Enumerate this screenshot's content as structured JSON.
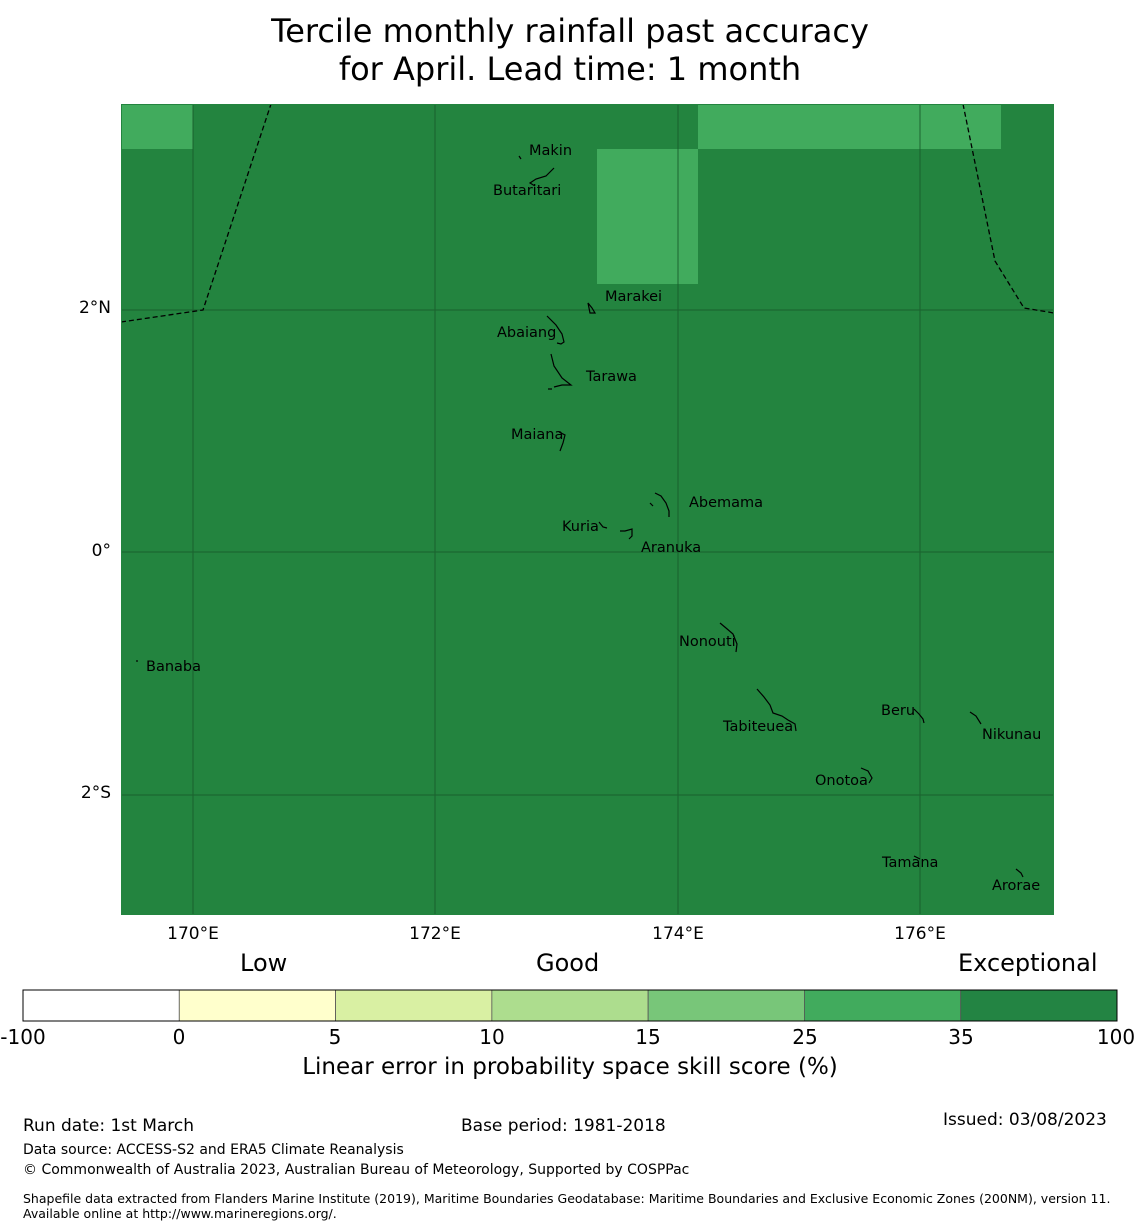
{
  "title": {
    "line1": "Tercile monthly rainfall past accuracy",
    "line2": "for April. Lead time: 1 month"
  },
  "map": {
    "background_color": "#23843f",
    "highlight_color": "#41ab5d",
    "latitude_labels": [
      "2°N",
      "0°",
      "2°S"
    ],
    "longitude_labels": [
      "170°E",
      "172°E",
      "174°E",
      "176°E"
    ],
    "islands": [
      "Makin",
      "Butaritari",
      "Marakei",
      "Abaiang",
      "Tarawa",
      "Maiana",
      "Abemama",
      "Kuria",
      "Aranuka",
      "Banaba",
      "Nonouti",
      "Beru",
      "Tabiteuea",
      "Nikunau",
      "Onotoa",
      "Tamana",
      "Arorae"
    ]
  },
  "colorbar": {
    "categories": [
      "Low",
      "Good",
      "Exceptional"
    ],
    "ticks": [
      "-100",
      "0",
      "5",
      "10",
      "15",
      "25",
      "35",
      "100"
    ],
    "colors": [
      "#ffffff",
      "#ffffcc",
      "#d9f0a3",
      "#addd8e",
      "#78c679",
      "#41ab5d",
      "#238443"
    ],
    "label": "Linear error in probability space skill score (%)"
  },
  "footer": {
    "run_date": "Run date: 1st March",
    "base_period": "Base period: 1981-2018",
    "issued": "Issued: 03/08/2023",
    "data_source": "Data source: ACCESS-S2 and ERA5 Climate Reanalysis",
    "copyright": "© Commonwealth of Australia 2023, Australian Bureau of Meteorology, Supported by COSPPac",
    "shapefile": "Shapefile data extracted from Flanders Marine Institute (2019), Maritime Boundaries Geodatabase: Maritime Boundaries and Exclusive Economic Zones (200NM), version 11. Available online at http://www.marineregions.org/."
  }
}
